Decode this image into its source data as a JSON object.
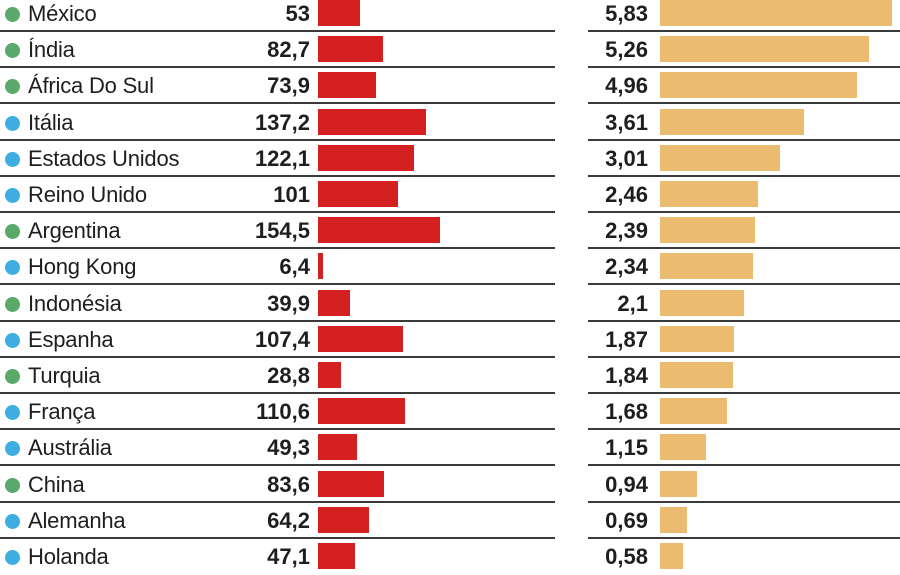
{
  "chart_data": {
    "type": "bar",
    "title": "",
    "series": [
      {
        "name": "",
        "color": "#d42020",
        "xlim": [
          0,
          154.5
        ]
      },
      {
        "name": "",
        "color": "#ebbb70",
        "xlim": [
          0,
          5.83
        ]
      }
    ],
    "group_colors": {
      "green": "#5aa86a",
      "blue": "#3eaee0"
    },
    "rows": [
      {
        "country": "México",
        "group": "green",
        "v1": 53,
        "v1_label": "53",
        "v2": 5.83,
        "v2_label": "5,83"
      },
      {
        "country": "Índia",
        "group": "green",
        "v1": 82.7,
        "v1_label": "82,7",
        "v2": 5.26,
        "v2_label": "5,26"
      },
      {
        "country": "África Do Sul",
        "group": "green",
        "v1": 73.9,
        "v1_label": "73,9",
        "v2": 4.96,
        "v2_label": "4,96"
      },
      {
        "country": "Itália",
        "group": "blue",
        "v1": 137.2,
        "v1_label": "137,2",
        "v2": 3.61,
        "v2_label": "3,61"
      },
      {
        "country": "Estados Unidos",
        "group": "blue",
        "v1": 122.1,
        "v1_label": "122,1",
        "v2": 3.01,
        "v2_label": "3,01"
      },
      {
        "country": "Reino Unido",
        "group": "blue",
        "v1": 101,
        "v1_label": "101",
        "v2": 2.46,
        "v2_label": "2,46"
      },
      {
        "country": "Argentina",
        "group": "green",
        "v1": 154.5,
        "v1_label": "154,5",
        "v2": 2.39,
        "v2_label": "2,39"
      },
      {
        "country": "Hong Kong",
        "group": "blue",
        "v1": 6.4,
        "v1_label": "6,4",
        "v2": 2.34,
        "v2_label": "2,34"
      },
      {
        "country": "Indonésia",
        "group": "green",
        "v1": 39.9,
        "v1_label": "39,9",
        "v2": 2.1,
        "v2_label": "2,1"
      },
      {
        "country": "Espanha",
        "group": "blue",
        "v1": 107.4,
        "v1_label": "107,4",
        "v2": 1.87,
        "v2_label": "1,87"
      },
      {
        "country": "Turquia",
        "group": "green",
        "v1": 28.8,
        "v1_label": "28,8",
        "v2": 1.84,
        "v2_label": "1,84"
      },
      {
        "country": "França",
        "group": "blue",
        "v1": 110.6,
        "v1_label": "110,6",
        "v2": 1.68,
        "v2_label": "1,68"
      },
      {
        "country": "Austrália",
        "group": "blue",
        "v1": 49.3,
        "v1_label": "49,3",
        "v2": 1.15,
        "v2_label": "1,15"
      },
      {
        "country": "China",
        "group": "green",
        "v1": 83.6,
        "v1_label": "83,6",
        "v2": 0.94,
        "v2_label": "0,94"
      },
      {
        "country": "Alemanha",
        "group": "blue",
        "v1": 64.2,
        "v1_label": "64,2",
        "v2": 0.69,
        "v2_label": "0,69"
      },
      {
        "country": "Holanda",
        "group": "blue",
        "v1": 47.1,
        "v1_label": "47,1",
        "v2": 0.58,
        "v2_label": "0,58"
      }
    ]
  }
}
